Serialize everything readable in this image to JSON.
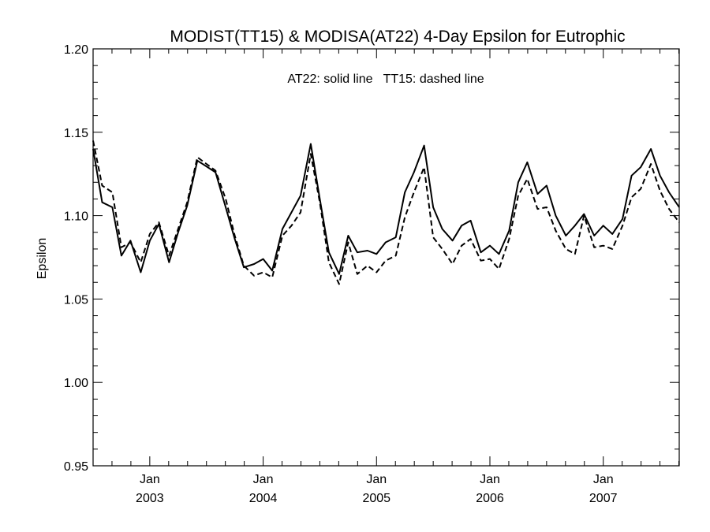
{
  "chart_data": {
    "type": "line",
    "title": "MODIST(TT15) & MODISA(AT22) 4-Day Epsilon for Eutrophic",
    "annotation": "AT22: solid line   TT15: dashed line",
    "xlabel": "",
    "ylabel": "Epsilon",
    "ylim": [
      0.95,
      1.2
    ],
    "xlim": [
      2002.5,
      2007.67
    ],
    "yticks": [
      "0.95",
      "1.00",
      "1.05",
      "1.10",
      "1.15",
      "1.20"
    ],
    "xticks": [
      {
        "month": "Jan",
        "year": "2003",
        "value": 2003.0
      },
      {
        "month": "Jan",
        "year": "2004",
        "value": 2004.0
      },
      {
        "month": "Jan",
        "year": "2005",
        "value": 2005.0
      },
      {
        "month": "Jan",
        "year": "2006",
        "value": 2006.0
      },
      {
        "month": "Jan",
        "year": "2007",
        "value": 2007.0
      }
    ],
    "grid": false,
    "series": [
      {
        "name": "AT22",
        "style": "solid",
        "color": "#000000",
        "points": [
          [
            2002.5,
            1.14
          ],
          [
            2002.58,
            1.108
          ],
          [
            2002.67,
            1.105
          ],
          [
            2002.75,
            1.076
          ],
          [
            2002.83,
            1.085
          ],
          [
            2002.92,
            1.066
          ],
          [
            2003.0,
            1.085
          ],
          [
            2003.08,
            1.095
          ],
          [
            2003.17,
            1.072
          ],
          [
            2003.25,
            1.09
          ],
          [
            2003.33,
            1.106
          ],
          [
            2003.42,
            1.133
          ],
          [
            2003.58,
            1.126
          ],
          [
            2003.67,
            1.105
          ],
          [
            2003.75,
            1.086
          ],
          [
            2003.83,
            1.069
          ],
          [
            2003.92,
            1.071
          ],
          [
            2004.0,
            1.074
          ],
          [
            2004.08,
            1.067
          ],
          [
            2004.17,
            1.092
          ],
          [
            2004.25,
            1.102
          ],
          [
            2004.33,
            1.112
          ],
          [
            2004.42,
            1.143
          ],
          [
            2004.5,
            1.11
          ],
          [
            2004.58,
            1.078
          ],
          [
            2004.67,
            1.065
          ],
          [
            2004.75,
            1.088
          ],
          [
            2004.83,
            1.078
          ],
          [
            2004.92,
            1.079
          ],
          [
            2005.0,
            1.077
          ],
          [
            2005.08,
            1.084
          ],
          [
            2005.17,
            1.087
          ],
          [
            2005.25,
            1.114
          ],
          [
            2005.33,
            1.126
          ],
          [
            2005.42,
            1.142
          ],
          [
            2005.5,
            1.105
          ],
          [
            2005.58,
            1.092
          ],
          [
            2005.67,
            1.085
          ],
          [
            2005.75,
            1.094
          ],
          [
            2005.83,
            1.097
          ],
          [
            2005.92,
            1.078
          ],
          [
            2006.0,
            1.082
          ],
          [
            2006.08,
            1.077
          ],
          [
            2006.17,
            1.091
          ],
          [
            2006.25,
            1.12
          ],
          [
            2006.33,
            1.132
          ],
          [
            2006.42,
            1.113
          ],
          [
            2006.5,
            1.118
          ],
          [
            2006.58,
            1.1
          ],
          [
            2006.67,
            1.088
          ],
          [
            2006.75,
            1.094
          ],
          [
            2006.83,
            1.101
          ],
          [
            2006.92,
            1.088
          ],
          [
            2007.0,
            1.094
          ],
          [
            2007.08,
            1.089
          ],
          [
            2007.17,
            1.098
          ],
          [
            2007.25,
            1.124
          ],
          [
            2007.33,
            1.129
          ],
          [
            2007.42,
            1.14
          ],
          [
            2007.5,
            1.124
          ],
          [
            2007.58,
            1.114
          ],
          [
            2007.67,
            1.105
          ]
        ]
      },
      {
        "name": "TT15",
        "style": "dashed",
        "color": "#000000",
        "points": [
          [
            2002.5,
            1.145
          ],
          [
            2002.58,
            1.118
          ],
          [
            2002.67,
            1.114
          ],
          [
            2002.75,
            1.081
          ],
          [
            2002.83,
            1.084
          ],
          [
            2002.92,
            1.072
          ],
          [
            2003.0,
            1.089
          ],
          [
            2003.08,
            1.096
          ],
          [
            2003.17,
            1.076
          ],
          [
            2003.25,
            1.092
          ],
          [
            2003.33,
            1.108
          ],
          [
            2003.42,
            1.135
          ],
          [
            2003.58,
            1.127
          ],
          [
            2003.67,
            1.11
          ],
          [
            2003.75,
            1.088
          ],
          [
            2003.83,
            1.07
          ],
          [
            2003.92,
            1.064
          ],
          [
            2004.0,
            1.066
          ],
          [
            2004.08,
            1.063
          ],
          [
            2004.17,
            1.088
          ],
          [
            2004.25,
            1.094
          ],
          [
            2004.33,
            1.102
          ],
          [
            2004.42,
            1.137
          ],
          [
            2004.5,
            1.108
          ],
          [
            2004.58,
            1.072
          ],
          [
            2004.67,
            1.059
          ],
          [
            2004.75,
            1.084
          ],
          [
            2004.83,
            1.065
          ],
          [
            2004.92,
            1.07
          ],
          [
            2005.0,
            1.066
          ],
          [
            2005.08,
            1.073
          ],
          [
            2005.17,
            1.076
          ],
          [
            2005.25,
            1.099
          ],
          [
            2005.33,
            1.114
          ],
          [
            2005.42,
            1.129
          ],
          [
            2005.5,
            1.087
          ],
          [
            2005.58,
            1.08
          ],
          [
            2005.67,
            1.071
          ],
          [
            2005.75,
            1.082
          ],
          [
            2005.83,
            1.086
          ],
          [
            2005.92,
            1.073
          ],
          [
            2006.0,
            1.074
          ],
          [
            2006.08,
            1.068
          ],
          [
            2006.17,
            1.086
          ],
          [
            2006.25,
            1.112
          ],
          [
            2006.33,
            1.122
          ],
          [
            2006.42,
            1.104
          ],
          [
            2006.5,
            1.105
          ],
          [
            2006.58,
            1.091
          ],
          [
            2006.67,
            1.08
          ],
          [
            2006.75,
            1.077
          ],
          [
            2006.83,
            1.1
          ],
          [
            2006.92,
            1.081
          ],
          [
            2007.0,
            1.082
          ],
          [
            2007.08,
            1.08
          ],
          [
            2007.17,
            1.094
          ],
          [
            2007.25,
            1.111
          ],
          [
            2007.33,
            1.116
          ],
          [
            2007.42,
            1.131
          ],
          [
            2007.5,
            1.115
          ],
          [
            2007.58,
            1.104
          ],
          [
            2007.67,
            1.096
          ]
        ]
      }
    ]
  }
}
